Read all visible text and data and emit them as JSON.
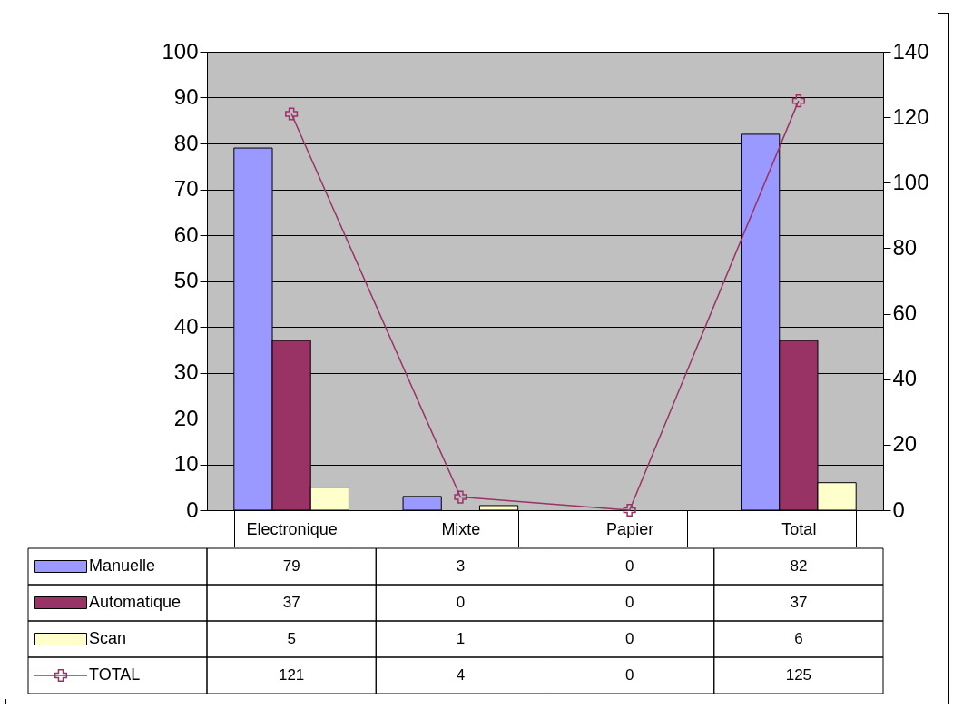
{
  "chart_data": {
    "type": "bar",
    "categories": [
      "Electronique",
      "Mixte",
      "Papier",
      "Total"
    ],
    "series": [
      {
        "name": "Manuelle",
        "color": "#9999ff",
        "values": [
          79,
          3,
          0,
          82
        ]
      },
      {
        "name": "Automatique",
        "color": "#993366",
        "values": [
          37,
          0,
          0,
          37
        ]
      },
      {
        "name": "Scan",
        "color": "#ffffcc",
        "values": [
          5,
          1,
          0,
          6
        ]
      },
      {
        "name": "TOTAL",
        "type": "line",
        "axis": "y2",
        "color": "#993366",
        "values": [
          121,
          4,
          0,
          125
        ]
      }
    ],
    "ylim": [
      0,
      100
    ],
    "yticks": [
      0,
      10,
      20,
      30,
      40,
      50,
      60,
      70,
      80,
      90,
      100
    ],
    "y2lim": [
      0,
      140
    ],
    "y2ticks": [
      0,
      20,
      40,
      60,
      80,
      100,
      120,
      140
    ],
    "grid": "y",
    "legend": "bottom",
    "marker": "cross",
    "data_labels": true
  }
}
